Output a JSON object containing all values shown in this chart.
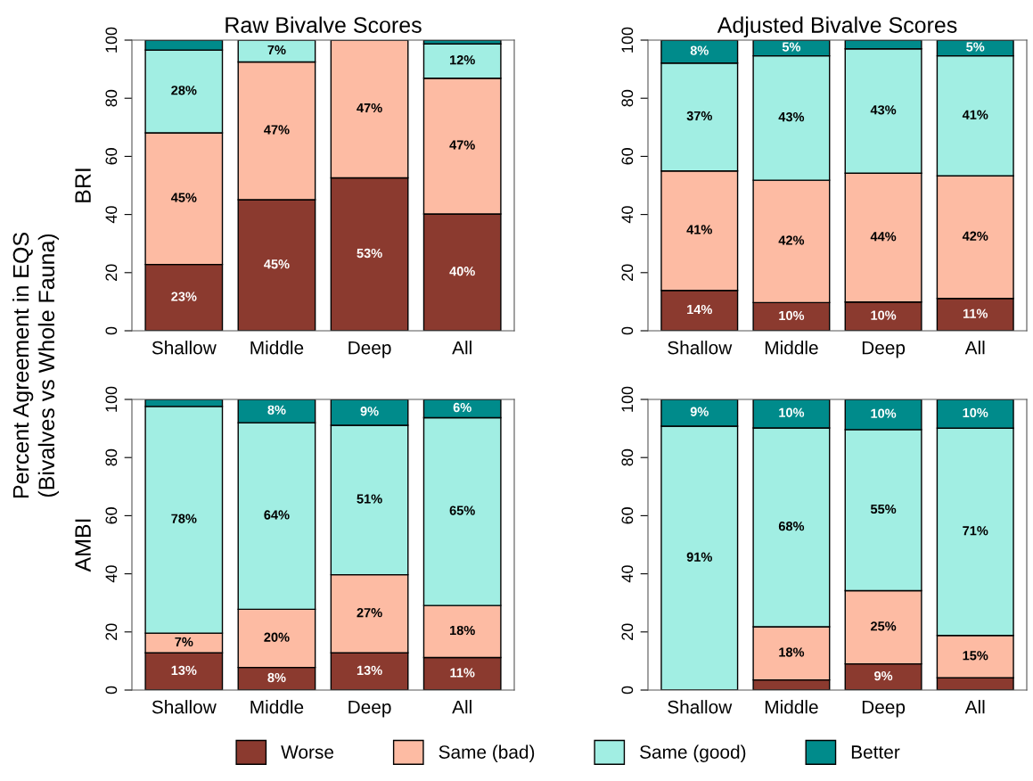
{
  "chart_data": [
    {
      "type": "bar",
      "stacked": true,
      "title": "Raw Bivalve Scores",
      "ylabel": "BRI",
      "annotations": [
        "Percent Agreement in EQS\n(Bivalves vs Whole Fauna)"
      ],
      "legend": "bottom",
      "categories": [
        "Shallow",
        "Middle",
        "Deep",
        "All"
      ],
      "ylim": [
        0,
        100
      ],
      "yticks": [
        0,
        20,
        40,
        60,
        80,
        100
      ],
      "series": [
        {
          "name": "Worse",
          "color": "#8b3a2f",
          "values": [
            22.8,
            45.1,
            52.6,
            40.2
          ],
          "value_labels": [
            "23%",
            "45%",
            "53%",
            "40%"
          ]
        },
        {
          "name": "Same (bad)",
          "color": "#fdbba3",
          "values": [
            45.3,
            47.4,
            47.4,
            46.7
          ],
          "value_labels": [
            "45%",
            "47%",
            "47%",
            "47%"
          ]
        },
        {
          "name": "Same (good)",
          "color": "#a1eee3",
          "values": [
            28.5,
            7.5,
            null,
            11.8
          ],
          "value_labels": [
            "28%",
            "7%",
            null,
            "12%"
          ]
        },
        {
          "name": "Better",
          "color": "#008b8b",
          "values": [
            3.4,
            null,
            null,
            1.3
          ],
          "value_labels": [
            null,
            null,
            null,
            null
          ]
        }
      ]
    },
    {
      "type": "bar",
      "stacked": true,
      "title": "Adjusted Bivalve Scores",
      "categories": [
        "Shallow",
        "Middle",
        "Deep",
        "All"
      ],
      "ylim": [
        0,
        100
      ],
      "yticks": [
        0,
        20,
        40,
        60,
        80,
        100
      ],
      "series": [
        {
          "color": "#8b3a2f",
          "values": [
            13.9,
            9.7,
            9.9,
            11.1
          ],
          "value_labels": [
            "14%",
            "10%",
            "10%",
            "11%"
          ]
        },
        {
          "color": "#fdbba3",
          "values": [
            41.1,
            42.1,
            44.3,
            42.2
          ],
          "value_labels": [
            "41%",
            "42%",
            "44%",
            "42%"
          ]
        },
        {
          "color": "#a1eee3",
          "values": [
            37.1,
            42.8,
            42.8,
            41.3
          ],
          "value_labels": [
            "37%",
            "43%",
            "43%",
            "41%"
          ]
        },
        {
          "color": "#008b8b",
          "values": [
            7.9,
            5.4,
            3.0,
            5.4
          ],
          "value_labels": [
            "8%",
            "5%",
            null,
            "5%"
          ]
        }
      ]
    },
    {
      "type": "bar",
      "stacked": true,
      "ylabel": "AMBI",
      "categories": [
        "Shallow",
        "Middle",
        "Deep",
        "All"
      ],
      "ylim": [
        0,
        100
      ],
      "yticks": [
        0,
        20,
        40,
        60,
        80,
        100
      ],
      "series": [
        {
          "color": "#8b3a2f",
          "values": [
            12.8,
            7.8,
            12.8,
            11.2
          ],
          "value_labels": [
            "13%",
            "8%",
            "13%",
            "11%"
          ]
        },
        {
          "color": "#fdbba3",
          "values": [
            6.8,
            20.0,
            26.9,
            17.9
          ],
          "value_labels": [
            "7%",
            "20%",
            "27%",
            "18%"
          ]
        },
        {
          "color": "#a1eee3",
          "values": [
            78.0,
            64.2,
            51.4,
            64.6
          ],
          "value_labels": [
            "78%",
            "64%",
            "51%",
            "65%"
          ]
        },
        {
          "color": "#008b8b",
          "values": [
            2.4,
            8.0,
            8.9,
            6.3
          ],
          "value_labels": [
            null,
            "8%",
            "9%",
            "6%"
          ]
        }
      ]
    },
    {
      "type": "bar",
      "stacked": true,
      "categories": [
        "Shallow",
        "Middle",
        "Deep",
        "All"
      ],
      "ylim": [
        0,
        100
      ],
      "yticks": [
        0,
        20,
        40,
        60,
        80,
        100
      ],
      "series": [
        {
          "color": "#8b3a2f",
          "values": [
            null,
            3.5,
            9.0,
            4.2
          ],
          "value_labels": [
            null,
            null,
            "9%",
            null
          ]
        },
        {
          "color": "#fdbba3",
          "values": [
            null,
            18.3,
            25.2,
            14.6
          ],
          "value_labels": [
            null,
            "18%",
            "25%",
            "15%"
          ]
        },
        {
          "color": "#a1eee3",
          "values": [
            90.8,
            68.4,
            55.4,
            71.3
          ],
          "value_labels": [
            "91%",
            "68%",
            "55%",
            "71%"
          ]
        },
        {
          "color": "#008b8b",
          "values": [
            9.2,
            9.8,
            10.4,
            9.9
          ],
          "value_labels": [
            "9%",
            "10%",
            "10%",
            "10%"
          ]
        }
      ]
    }
  ]
}
